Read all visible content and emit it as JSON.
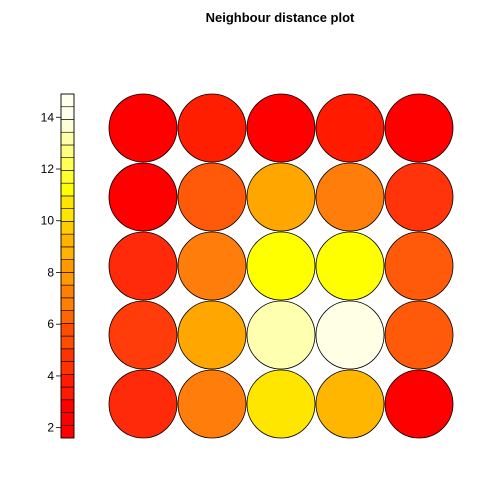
{
  "chart_data": {
    "type": "heatmap",
    "title": "Neighbour distance plot",
    "grid": {
      "rows": 5,
      "cols": 5
    },
    "colorbar": {
      "ticks": [
        2,
        4,
        6,
        8,
        10,
        12,
        14
      ],
      "ylim": [
        1.6,
        14.9
      ],
      "colors": [
        "#FF0000",
        "#FF0000",
        "#FF0000",
        "#FF1A00",
        "#FF1A00",
        "#FF3300",
        "#FF3300",
        "#FF4D00",
        "#FF4D00",
        "#FF6600",
        "#FF8000",
        "#FF8000",
        "#FF9900",
        "#FF9900",
        "#FFB300",
        "#FFB300",
        "#FFCC00",
        "#FFE600",
        "#FFE600",
        "#FFFF00",
        "#FFFF2B",
        "#FFFF55",
        "#FFFF80",
        "#FFFFAA",
        "#FFFFD5",
        "#FFFFEE",
        "#FFFFEE"
      ]
    },
    "cells": [
      [
        "#FF0000",
        "#FF1F00",
        "#FF0000",
        "#FF1A00",
        "#FF0000"
      ],
      [
        "#FF0000",
        "#FF5A0A",
        "#FFA600",
        "#FF7D0A",
        "#FF340A"
      ],
      [
        "#FF2A0A",
        "#FF7D0A",
        "#FFFF00",
        "#FFFF00",
        "#FF5A0A"
      ],
      [
        "#FF3C0A",
        "#FFA600",
        "#FFFFB0",
        "#FFFFE6",
        "#FF5A0A"
      ],
      [
        "#FF2A0A",
        "#FF7D0A",
        "#FFE600",
        "#FFB600",
        "#FF0000"
      ]
    ]
  }
}
